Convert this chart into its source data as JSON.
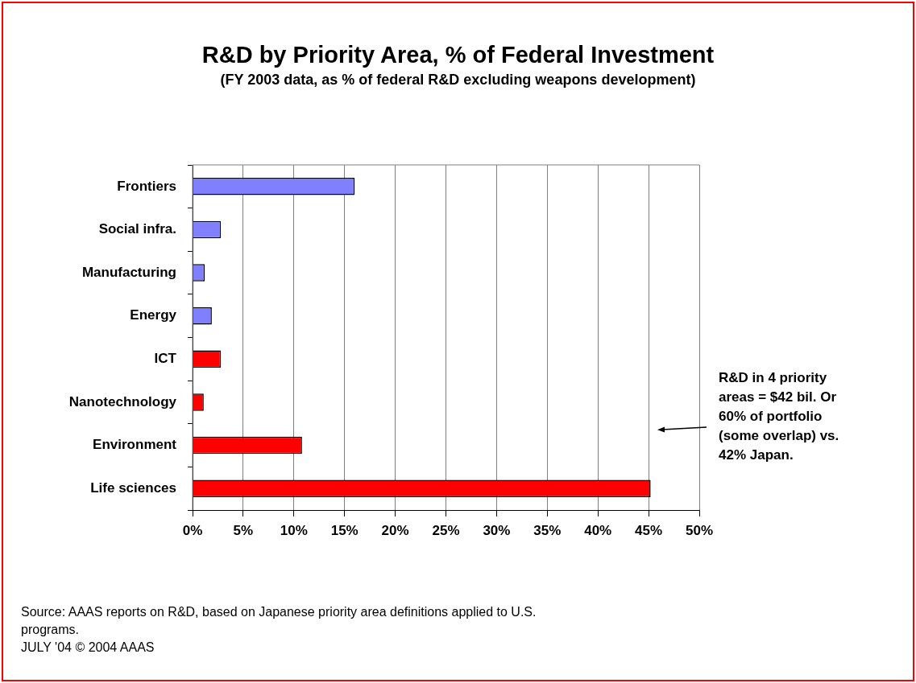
{
  "chart_data": {
    "type": "bar",
    "orientation": "horizontal",
    "title": "R&D by Priority Area, % of Federal Investment",
    "subtitle": "(FY 2003 data, as % of federal R&D excluding weapons development)",
    "categories": [
      "Frontiers",
      "Social infra.",
      "Manufacturing",
      "Energy",
      "ICT",
      "Nanotechnology",
      "Environment",
      "Life sciences"
    ],
    "values": [
      16.0,
      2.8,
      1.2,
      1.9,
      2.8,
      1.1,
      10.8,
      45.2
    ],
    "colors": [
      "#8080ff",
      "#8080ff",
      "#8080ff",
      "#8080ff",
      "#ff0000",
      "#ff0000",
      "#ff0000",
      "#ff0000"
    ],
    "xlim": [
      0,
      50
    ],
    "xticks": [
      {
        "value": 0,
        "label": "0%"
      },
      {
        "value": 5,
        "label": "5%"
      },
      {
        "value": 10,
        "label": "10%"
      },
      {
        "value": 15,
        "label": "15%"
      },
      {
        "value": 20,
        "label": "20%"
      },
      {
        "value": 25,
        "label": "25%"
      },
      {
        "value": 30,
        "label": "30%"
      },
      {
        "value": 35,
        "label": "35%"
      },
      {
        "value": 40,
        "label": "40%"
      },
      {
        "value": 45,
        "label": "45%"
      },
      {
        "value": 50,
        "label": "50%"
      }
    ],
    "grid": "x",
    "legend": false,
    "annotations": [
      "R&D in 4 priority areas = $42 bil. Or 60% of portfolio (some overlap) vs. 42% Japan.",
      "Source: AAAS reports on R&D, based on Japanese priority area definitions applied to U.S. programs.",
      "JULY '04 © 2004 AAAS"
    ]
  }
}
